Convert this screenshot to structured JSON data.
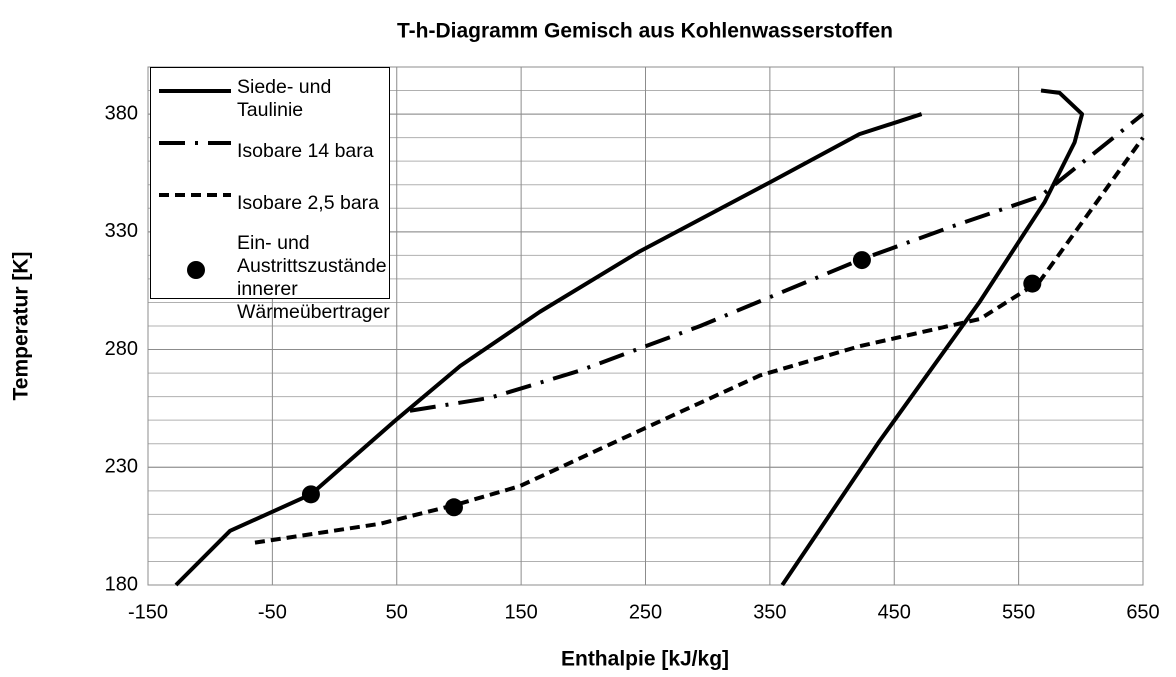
{
  "chart_data": {
    "type": "line",
    "title": "T-h-Diagramm Gemisch aus Kohlenwasserstoffen",
    "xlabel": "Enthalpie [kJ/kg]",
    "ylabel": "Temperatur [K]",
    "xlim": [
      -150,
      650
    ],
    "xticks": [
      -150,
      -50,
      50,
      150,
      250,
      350,
      450,
      550,
      650
    ],
    "ylim": [
      180,
      400
    ],
    "yticks": [
      180,
      230,
      280,
      330,
      380
    ],
    "y_minor_step": 10,
    "grid": true,
    "legend": "upper left",
    "series": [
      {
        "name": "Siede- und Taulinie",
        "color": "#000000",
        "style": "solid",
        "x": [
          -127.5,
          -84,
          -19,
          48.5,
          101,
          165,
          245,
          350,
          422,
          472,
          null,
          360,
          438,
          519,
          571,
          595,
          601,
          583,
          568
        ],
        "values": [
          180,
          203,
          218.5,
          249.7,
          273,
          296,
          321.6,
          351,
          371.5,
          380,
          null,
          180,
          241,
          300.5,
          342.7,
          368,
          380,
          389,
          390
        ]
      },
      {
        "name": "Isobare 14 bara",
        "color": "#000000",
        "style": "dashdot",
        "x": [
          60.6,
          125,
          197,
          294,
          422,
          495,
          567,
          650
        ],
        "values": [
          254,
          259.5,
          271,
          290,
          318,
          332,
          345,
          380
        ]
      },
      {
        "name": "Isobare 2,5 bara",
        "color": "#000000",
        "style": "dashed",
        "x": [
          -64,
          36.5,
          97,
          149,
          245,
          342,
          422,
          519,
          567,
          650
        ],
        "values": [
          198,
          206,
          214,
          222,
          245.5,
          269,
          281.4,
          293,
          309,
          370
        ]
      },
      {
        "name": "Ein- und Austrittszustände innerer Wärmeübertrager",
        "color": "#000000",
        "style": "markers",
        "x": [
          -19,
          96,
          424,
          561
        ],
        "values": [
          218.5,
          213,
          318,
          308
        ]
      }
    ]
  }
}
